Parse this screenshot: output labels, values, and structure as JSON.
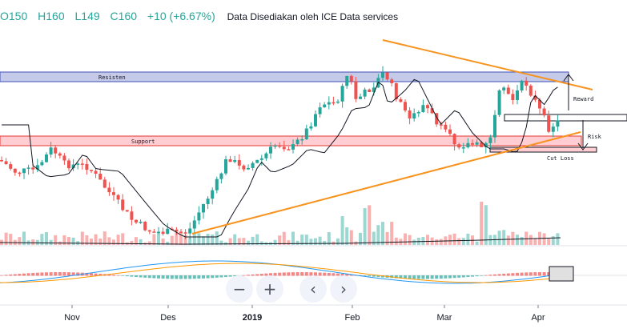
{
  "header": {
    "open_label": "O150",
    "high_label": "H160",
    "low_label": "L149",
    "close_label": "C160",
    "change_label": "+10 (+6.67%)",
    "source": "Data Disediakan oleh ICE Data services"
  },
  "zoom_controls": {
    "zoom_out": "−",
    "zoom_in": "+",
    "scroll_left": "‹",
    "scroll_right": "›"
  },
  "colors": {
    "up": "#26a69a",
    "down": "#ef5350",
    "trendline": "#f7931e",
    "ma": "#131722",
    "resistance_fill": "#c5cae9",
    "resistance_stroke": "#3f51b5",
    "support_fill": "#ffcdd2",
    "support_stroke": "#e53935",
    "macd": "#2196f3",
    "signal": "#ff9800"
  },
  "chart_data": {
    "type": "candlestick",
    "title": "",
    "x_tick_labels": [
      "Nov",
      "Des",
      "2019",
      "Feb",
      "Mar",
      "Apr"
    ],
    "ohlc_last": {
      "open": 150,
      "high": 160,
      "low": 149,
      "close": 160,
      "change": 10,
      "change_pct": 6.67
    },
    "annotations": {
      "resistance_label": "Resisten",
      "support_label": "Support",
      "reward_label": "Reward",
      "risk_label": "Risk",
      "cutloss_label": "Cut Loss"
    },
    "panels": [
      "price",
      "volume",
      "macd"
    ],
    "grid": false
  }
}
